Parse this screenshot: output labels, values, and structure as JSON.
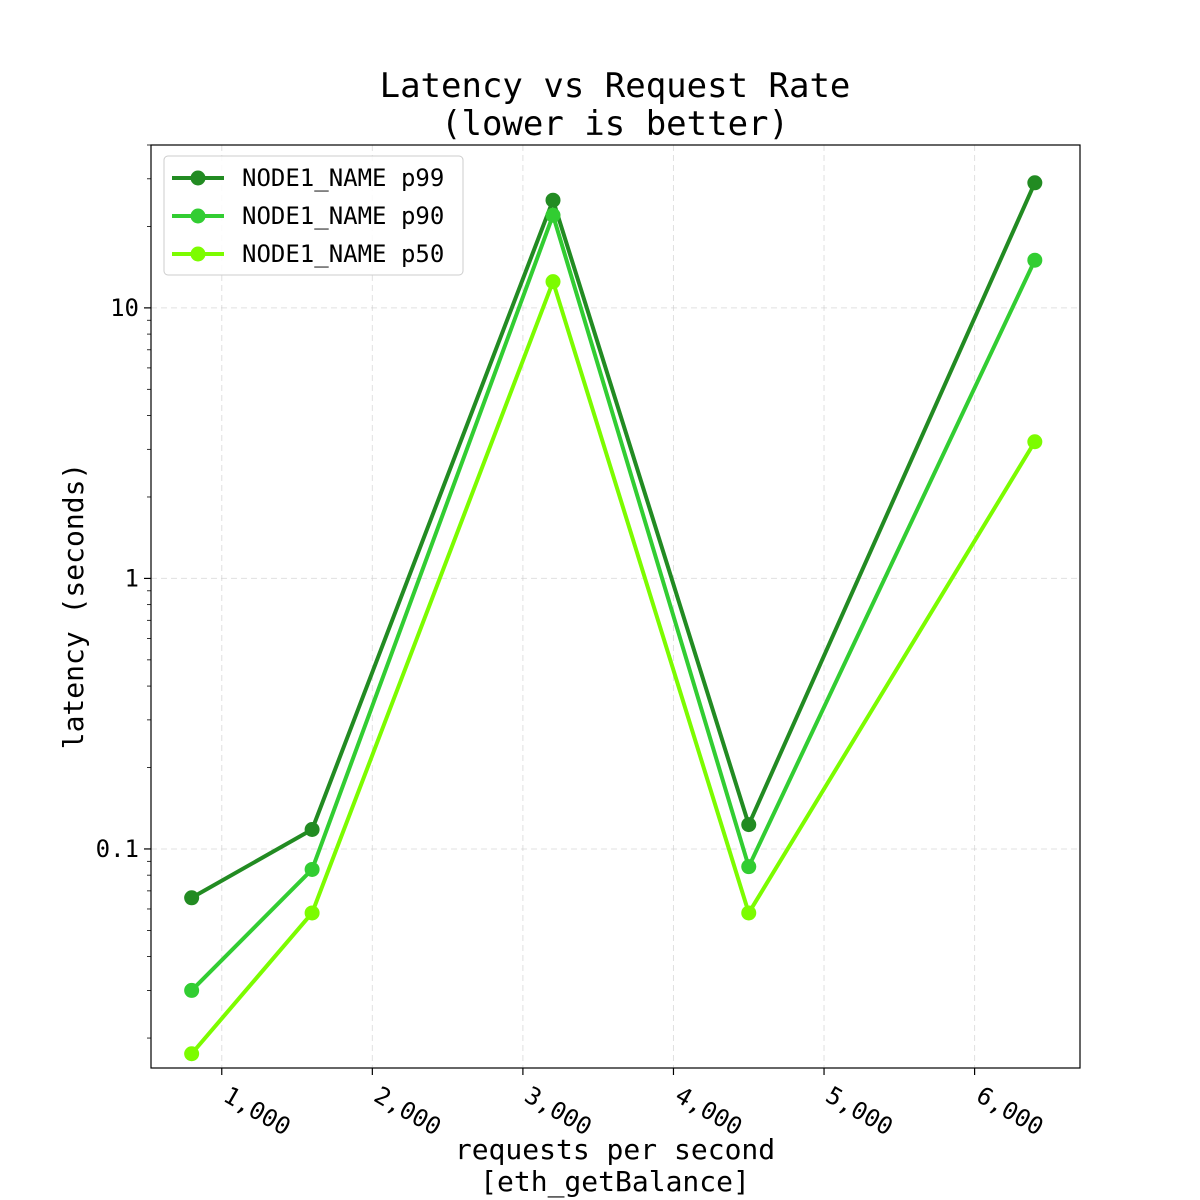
{
  "chart_data": {
    "type": "line",
    "title": [
      "Latency vs Request Rate",
      "(lower is better)"
    ],
    "xlabel": [
      "requests per second",
      "[eth_getBalance]"
    ],
    "ylabel": "latency (seconds)",
    "y_scale": "log",
    "x_ticks": [
      1000,
      2000,
      3000,
      4000,
      5000,
      6000
    ],
    "x_tick_labels": [
      "1,000",
      "2,000",
      "3,000",
      "4,000",
      "5,000",
      "6,000"
    ],
    "y_ticks": [
      0.1,
      1,
      10
    ],
    "y_tick_labels": [
      "0.1",
      "1",
      "10"
    ],
    "xlim": [
      530,
      6700
    ],
    "ylim": [
      0.0155,
      40
    ],
    "grid": true,
    "legend_position": "top-left",
    "x": [
      800,
      1600,
      3200,
      4500,
      6400
    ],
    "series": [
      {
        "name": "NODE1_NAME p99",
        "color": "#228B22",
        "values": [
          0.066,
          0.118,
          25,
          0.123,
          29
        ]
      },
      {
        "name": "NODE1_NAME p90",
        "color": "#32CD32",
        "values": [
          0.03,
          0.084,
          22,
          0.086,
          15
        ]
      },
      {
        "name": "NODE1_NAME p50",
        "color": "#7CFC00",
        "values": [
          0.0175,
          0.058,
          12.5,
          0.058,
          3.2
        ]
      }
    ]
  }
}
